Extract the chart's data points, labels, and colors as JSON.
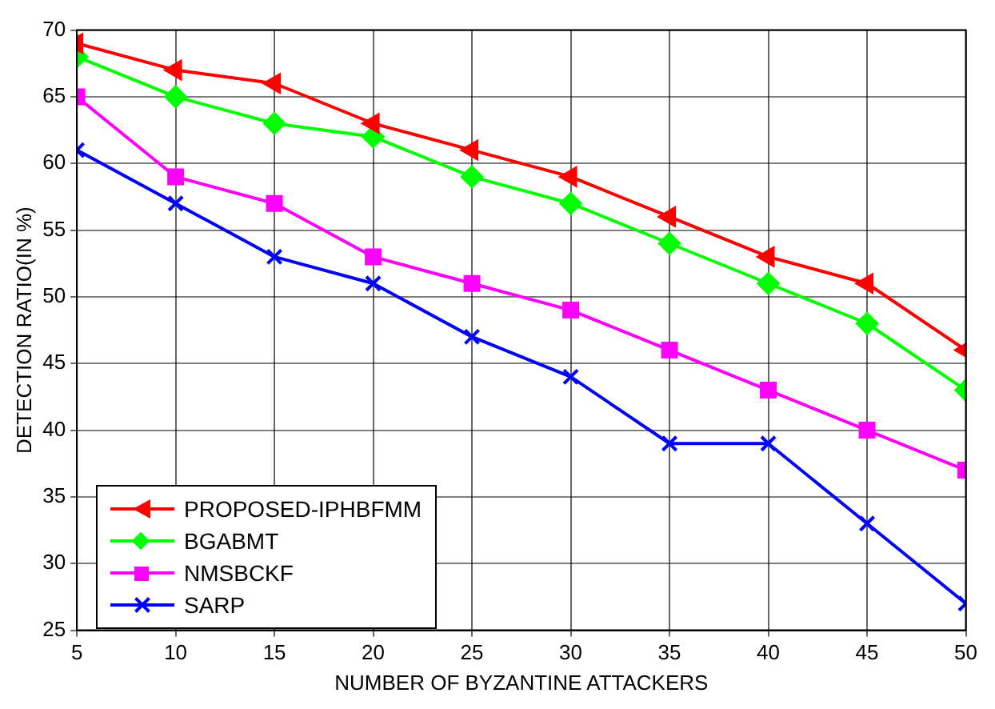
{
  "chart_data": {
    "type": "line",
    "xlabel": "NUMBER OF BYZANTINE ATTACKERS",
    "ylabel": "DETECTION RATIO(IN %)",
    "x": [
      5,
      10,
      15,
      20,
      25,
      30,
      35,
      40,
      45,
      50
    ],
    "series": [
      {
        "name": "PROPOSED-IPHBFMM",
        "color": "#ff0000",
        "marker": "triangle",
        "values": [
          69,
          67,
          66,
          63,
          61,
          59,
          56,
          53,
          51,
          46
        ]
      },
      {
        "name": "BGABMT",
        "color": "#00ff00",
        "marker": "diamond",
        "values": [
          68,
          65,
          63,
          62,
          59,
          57,
          54,
          51,
          48,
          43
        ]
      },
      {
        "name": "NMSBCKF",
        "color": "#ff00ff",
        "marker": "square",
        "values": [
          65,
          59,
          57,
          53,
          51,
          49,
          46,
          43,
          40,
          37
        ]
      },
      {
        "name": "SARP",
        "color": "#0000ff",
        "marker": "cross",
        "values": [
          61,
          57,
          53,
          51,
          47,
          44,
          39,
          39,
          33,
          27
        ]
      }
    ],
    "xlim": [
      5,
      50
    ],
    "xticks": [
      5,
      10,
      15,
      20,
      25,
      30,
      35,
      40,
      45,
      50
    ],
    "ylim": [
      25,
      70
    ],
    "yticks": [
      25,
      30,
      35,
      40,
      45,
      50,
      55,
      60,
      65,
      70
    ],
    "grid": true,
    "legend": "bottom left",
    "line_style": "solid"
  }
}
